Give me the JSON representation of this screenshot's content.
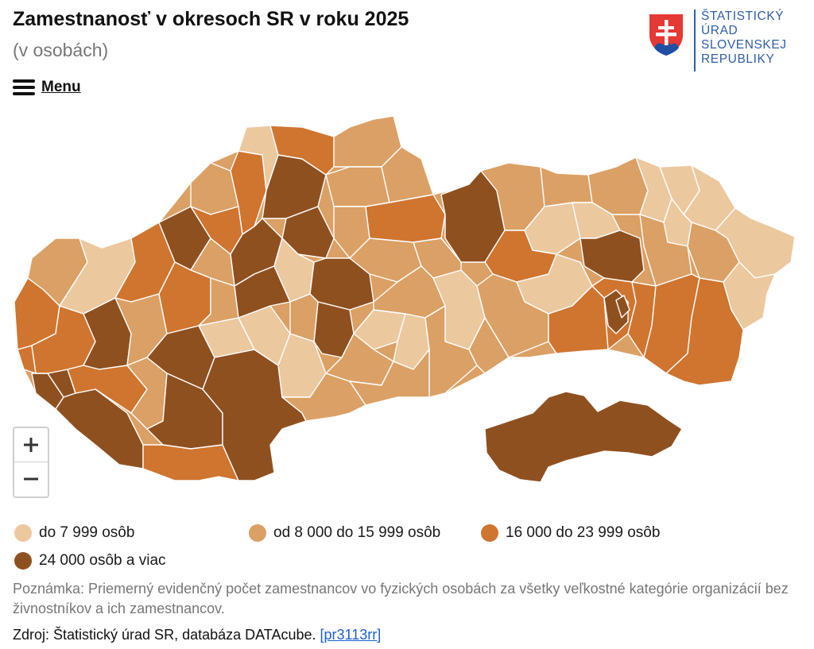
{
  "header": {
    "title": "Zamestnanosť v okresoch SR v roku 2025",
    "subtitle": "(v osobách)",
    "menu_label": "Menu"
  },
  "logo": {
    "lines": [
      "ŠTATISTICKÝ",
      "ÚRAD",
      "SLOVENSKEJ",
      "REPUBLIKY"
    ],
    "colors": {
      "text": "#2f5ea8",
      "shield_red": "#e53935",
      "shield_blue": "#1e4fa3"
    }
  },
  "map": {
    "icons": [
      "plus-icon",
      "minus-icon"
    ],
    "zoom_in_symbol": "+",
    "zoom_out_symbol": "−"
  },
  "legend": {
    "items": [
      {
        "label": "do 7 999 osôb",
        "color": "#ecc89f"
      },
      {
        "label": "od 8 000 do 15 999 osôb",
        "color": "#dba065"
      },
      {
        "label": "16 000 do 23 999 osôb",
        "color": "#cf7530"
      },
      {
        "label": "24 000 osôb a viac",
        "color": "#8f5020"
      }
    ]
  },
  "note": "Poznámka: Priemerný evidenčný počet zamestnancov vo fyzických osobách za všetky veľkostné kategórie organizácií bez živnostníkov a ich zamestnancov.",
  "source": {
    "text": "Zdroj: Štatistický úrad SR, databáza DATAcube.",
    "link": "[pr3113rr]"
  }
}
